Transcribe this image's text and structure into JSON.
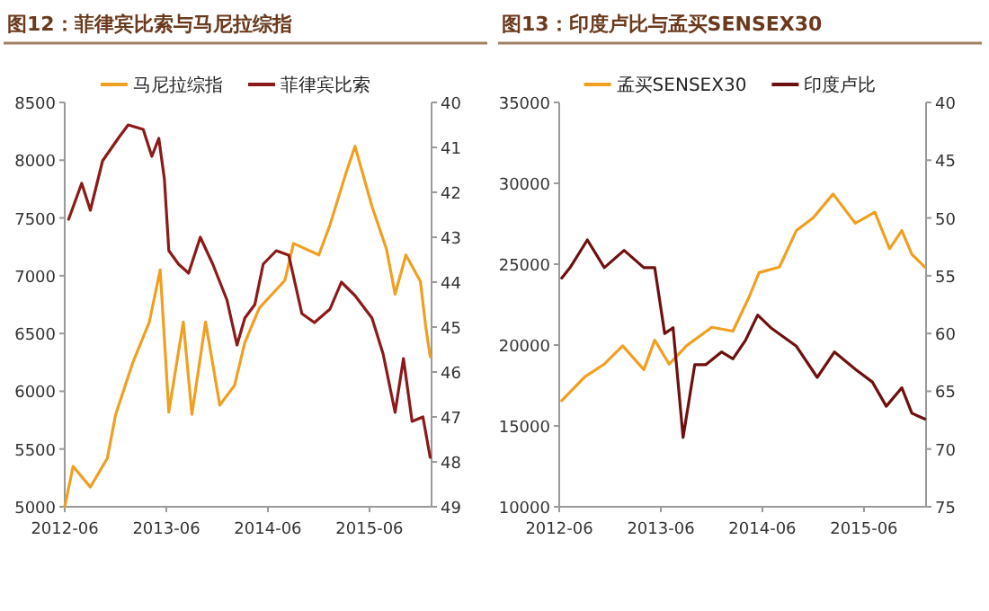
{
  "chart_data": [
    {
      "type": "line",
      "title": "图12：菲律宾比索与马尼拉综指",
      "legend": "top",
      "xlim": [
        "2012-06",
        "2016-01-10"
      ],
      "xticks": [
        "2012-06",
        "2013-06",
        "2014-06",
        "2015-06"
      ],
      "ylim": [
        5000,
        8500
      ],
      "yticks": [
        5000,
        5500,
        6000,
        6500,
        7000,
        7500,
        8000,
        8500
      ],
      "y2lim": [
        49,
        40
      ],
      "y2ticks": [
        40,
        41,
        42,
        43,
        44,
        45,
        46,
        47,
        48,
        49
      ],
      "series": [
        {
          "name": "马尼拉综指",
          "color": "#f0a020",
          "x": [
            "2012-06-01",
            "2012-07-01",
            "2012-09-01",
            "2012-11-01",
            "2012-12-01",
            "2013-02-01",
            "2013-04-01",
            "2013-05-10",
            "2013-06-10",
            "2013-08-01",
            "2013-09-01",
            "2013-10-20",
            "2013-12-10",
            "2014-02-01",
            "2014-03-10",
            "2014-05-01",
            "2014-08-01",
            "2014-09-01",
            "2014-12-01",
            "2015-01-10",
            "2015-03-10",
            "2015-04-10",
            "2015-06-10",
            "2015-08-01",
            "2015-09-01",
            "2015-10-10",
            "2015-12-01",
            "2015-12-20",
            "2016-01-05"
          ],
          "values": [
            5000,
            5350,
            5170,
            5420,
            5800,
            6250,
            6600,
            7050,
            5820,
            6600,
            5800,
            6600,
            5880,
            6050,
            6420,
            6720,
            6960,
            7280,
            7180,
            7440,
            7900,
            8120,
            7600,
            7230,
            6840,
            7180,
            6950,
            6560,
            6300
          ]
        },
        {
          "name": "菲律宾比索",
          "color": "#8b1a1a",
          "axis": "y2",
          "x": [
            "2012-06-15",
            "2012-08-01",
            "2012-09-01",
            "2012-10-15",
            "2012-12-10",
            "2013-01-15",
            "2013-03-10",
            "2013-04-10",
            "2013-05-05",
            "2013-05-25",
            "2013-06-10",
            "2013-07-15",
            "2013-08-20",
            "2013-10-01",
            "2013-11-15",
            "2014-01-05",
            "2014-02-10",
            "2014-03-10",
            "2014-04-15",
            "2014-05-15",
            "2014-07-01",
            "2014-08-15",
            "2014-10-01",
            "2014-11-15",
            "2015-01-10",
            "2015-02-20",
            "2015-04-10",
            "2015-06-10",
            "2015-07-20",
            "2015-09-01",
            "2015-10-01",
            "2015-11-01",
            "2015-12-10",
            "2016-01-05"
          ],
          "values": [
            42.6,
            41.8,
            42.4,
            41.3,
            40.8,
            40.5,
            40.6,
            41.2,
            40.8,
            41.7,
            43.3,
            43.6,
            43.8,
            43.0,
            43.6,
            44.4,
            45.4,
            44.8,
            44.5,
            43.6,
            43.3,
            43.4,
            44.7,
            44.9,
            44.6,
            44.0,
            44.3,
            44.8,
            45.6,
            46.9,
            45.7,
            47.1,
            47.0,
            47.9
          ]
        }
      ]
    },
    {
      "type": "line",
      "title": "图13：印度卢比与孟买SENSEX30",
      "legend": "top",
      "xlim": [
        "2012-06",
        "2016-01-10"
      ],
      "xticks": [
        "2012-06",
        "2013-06",
        "2014-06",
        "2015-06"
      ],
      "ylim": [
        10000,
        35000
      ],
      "yticks": [
        10000,
        15000,
        20000,
        25000,
        30000,
        35000
      ],
      "y2lim": [
        75,
        40
      ],
      "y2ticks": [
        40,
        45,
        50,
        55,
        60,
        65,
        70,
        75
      ],
      "series": [
        {
          "name": "孟买SENSEX30",
          "color": "#f0a020",
          "x": [
            "2012-06-10",
            "2012-09-01",
            "2012-11-10",
            "2013-01-15",
            "2013-04-01",
            "2013-05-10",
            "2013-07-01",
            "2013-09-01",
            "2013-12-01",
            "2014-02-15",
            "2014-04-15",
            "2014-05-20",
            "2014-08-01",
            "2014-10-01",
            "2014-12-01",
            "2015-02-10",
            "2015-05-01",
            "2015-07-10",
            "2015-09-01",
            "2015-10-15",
            "2015-11-20",
            "2016-01-05"
          ],
          "values": [
            16560,
            18030,
            18820,
            19950,
            18480,
            20300,
            18820,
            19950,
            21100,
            20860,
            23000,
            24480,
            24820,
            27080,
            27870,
            29340,
            27530,
            28210,
            25950,
            27080,
            25610,
            24820
          ]
        },
        {
          "name": "印度卢比",
          "color": "#6e1010",
          "axis": "y2",
          "x": [
            "2012-06-10",
            "2012-07-10",
            "2012-09-10",
            "2012-11-10",
            "2013-01-20",
            "2013-04-01",
            "2013-05-10",
            "2013-06-15",
            "2013-07-15",
            "2013-08-20",
            "2013-10-01",
            "2013-11-10",
            "2014-01-05",
            "2014-02-15",
            "2014-04-01",
            "2014-05-15",
            "2014-07-01",
            "2014-10-01",
            "2014-12-15",
            "2015-02-15",
            "2015-05-01",
            "2015-07-01",
            "2015-08-20",
            "2015-10-15",
            "2015-11-20",
            "2016-01-05"
          ],
          "values": [
            55.2,
            54.3,
            51.9,
            54.3,
            52.8,
            54.3,
            54.3,
            60.0,
            59.5,
            69.0,
            62.7,
            62.7,
            61.6,
            62.2,
            60.6,
            58.4,
            59.5,
            61.1,
            63.8,
            61.6,
            63.1,
            64.2,
            66.3,
            64.7,
            66.9,
            67.4
          ]
        }
      ]
    }
  ]
}
